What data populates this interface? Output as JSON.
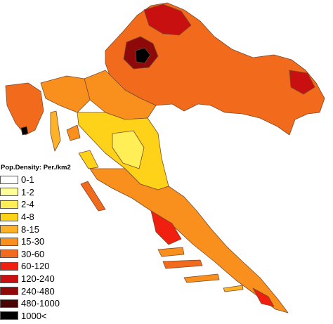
{
  "legend": {
    "title": "Pop.Density: Per./km2",
    "classes": [
      {
        "label": "0-1",
        "color": "#ffffff"
      },
      {
        "label": "1-2",
        "color": "#ffff99"
      },
      {
        "label": "2-4",
        "color": "#ffee55"
      },
      {
        "label": "4-8",
        "color": "#ffd21a"
      },
      {
        "label": "8-15",
        "color": "#fdb22a"
      },
      {
        "label": "15-30",
        "color": "#f9901e"
      },
      {
        "label": "30-60",
        "color": "#f26b1d"
      },
      {
        "label": "60-120",
        "color": "#f01f10"
      },
      {
        "label": "120-240",
        "color": "#c81010"
      },
      {
        "label": "240-480",
        "color": "#8e0a0a"
      },
      {
        "label": "480-1000",
        "color": "#4a0404"
      },
      {
        "label": "1000<",
        "color": "#000000"
      }
    ]
  }
}
